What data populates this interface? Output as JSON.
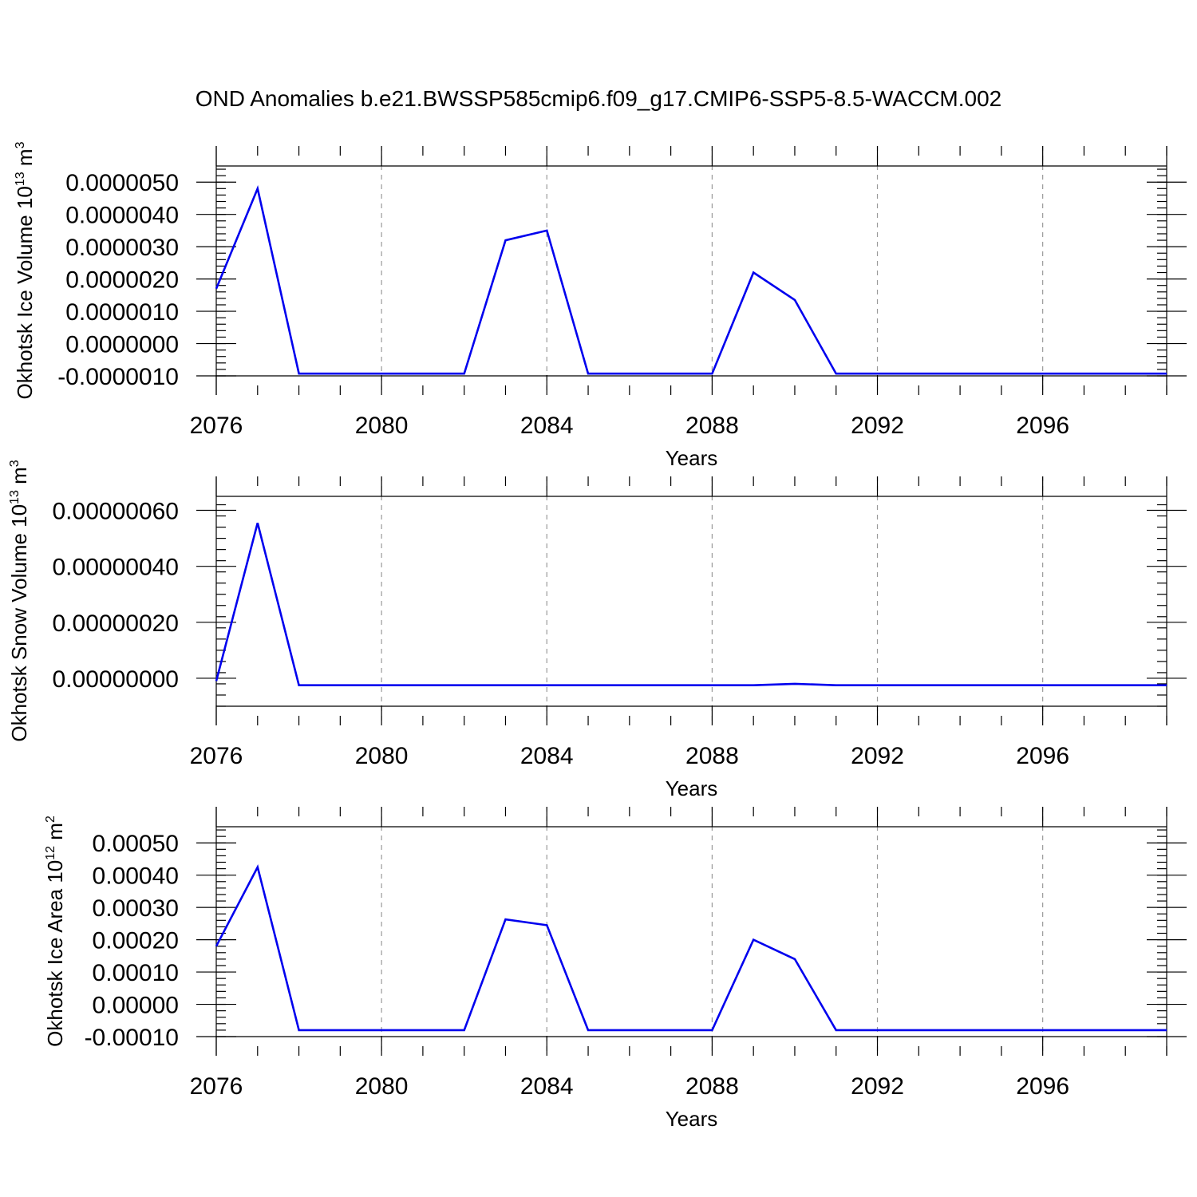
{
  "title": "OND Anomalies b.e21.BWSSP585cmip6.f09_g17.CMIP6-SSP5-8.5-WACCM.002",
  "colors": {
    "line": "#0000ee",
    "grid": "#9a9a9a",
    "axis": "#000000"
  },
  "chart_data": [
    {
      "type": "line",
      "ylabel_main": "Okhotsk Ice Volume 10",
      "ylabel_exp": "13",
      "ylabel_unit": " m",
      "ylabel_unit_exp": "3",
      "xlabel": "Years",
      "xlim": [
        2076,
        2099
      ],
      "ylim": [
        -1e-06,
        5.5e-06
      ],
      "x_ticks": [
        2076,
        2080,
        2084,
        2088,
        2092,
        2096
      ],
      "x_tick_labels": [
        "2076",
        "2080",
        "2084",
        "2088",
        "2092",
        "2096"
      ],
      "y_ticks": [
        -1e-06,
        0.0,
        1e-06,
        2e-06,
        3e-06,
        4e-06,
        5e-06
      ],
      "y_tick_labels": [
        "-0.0000010",
        "0.0000000",
        "0.0000010",
        "0.0000020",
        "0.0000030",
        "0.0000040",
        "0.0000050"
      ],
      "grid": "vertical dashed at major x ticks",
      "series": [
        {
          "x": [
            2076,
            2077,
            2078,
            2079,
            2080,
            2081,
            2082,
            2083,
            2084,
            2085,
            2086,
            2087,
            2088,
            2089,
            2090,
            2091,
            2092,
            2093,
            2094,
            2095,
            2096,
            2097,
            2098,
            2099
          ],
          "values": [
            1.7e-06,
            4.8e-06,
            -9.3e-07,
            -9.3e-07,
            -9.3e-07,
            -9.3e-07,
            -9.3e-07,
            3.2e-06,
            3.5e-06,
            -9.3e-07,
            -9.3e-07,
            -9.3e-07,
            -9.3e-07,
            2.2e-06,
            1.35e-06,
            -9.3e-07,
            -9.3e-07,
            -9.3e-07,
            -9.3e-07,
            -9.3e-07,
            -9.3e-07,
            -9.3e-07,
            -9.3e-07,
            -9.3e-07
          ]
        }
      ]
    },
    {
      "type": "line",
      "ylabel_main": "Okhotsk Snow Volume 10",
      "ylabel_exp": "13",
      "ylabel_unit": " m",
      "ylabel_unit_exp": "3",
      "xlabel": "Years",
      "xlim": [
        2076,
        2099
      ],
      "ylim": [
        -1e-07,
        6.5e-07
      ],
      "x_ticks": [
        2076,
        2080,
        2084,
        2088,
        2092,
        2096
      ],
      "x_tick_labels": [
        "2076",
        "2080",
        "2084",
        "2088",
        "2092",
        "2096"
      ],
      "y_ticks": [
        0.0,
        2e-07,
        4e-07,
        6e-07
      ],
      "y_tick_labels": [
        "0.00000000",
        "0.00000020",
        "0.00000040",
        "0.00000060"
      ],
      "grid": "vertical dashed at major x ticks",
      "series": [
        {
          "x": [
            2076,
            2077,
            2078,
            2079,
            2080,
            2081,
            2082,
            2083,
            2084,
            2085,
            2086,
            2087,
            2088,
            2089,
            2090,
            2091,
            2092,
            2093,
            2094,
            2095,
            2096,
            2097,
            2098,
            2099
          ],
          "values": [
            -1e-08,
            5.55e-07,
            -2.5e-08,
            -2.5e-08,
            -2.5e-08,
            -2.5e-08,
            -2.5e-08,
            -2.5e-08,
            -2.5e-08,
            -2.5e-08,
            -2.5e-08,
            -2.5e-08,
            -2.5e-08,
            -2.5e-08,
            -2e-08,
            -2.5e-08,
            -2.5e-08,
            -2.5e-08,
            -2.5e-08,
            -2.5e-08,
            -2.5e-08,
            -2.5e-08,
            -2.5e-08,
            -2.5e-08
          ]
        }
      ]
    },
    {
      "type": "line",
      "ylabel_main": "Okhotsk Ice Area 10",
      "ylabel_exp": "12",
      "ylabel_unit": " m",
      "ylabel_unit_exp": "2",
      "xlabel": "Years",
      "xlim": [
        2076,
        2099
      ],
      "ylim": [
        -0.0001,
        0.00055
      ],
      "x_ticks": [
        2076,
        2080,
        2084,
        2088,
        2092,
        2096
      ],
      "x_tick_labels": [
        "2076",
        "2080",
        "2084",
        "2088",
        "2092",
        "2096"
      ],
      "y_ticks": [
        -0.0001,
        0.0,
        0.0001,
        0.0002,
        0.0003,
        0.0004,
        0.0005
      ],
      "y_tick_labels": [
        "-0.00010",
        "0.00000",
        "0.00010",
        "0.00020",
        "0.00030",
        "0.00040",
        "0.00050"
      ],
      "grid": "vertical dashed at major x ticks",
      "series": [
        {
          "x": [
            2076,
            2077,
            2078,
            2079,
            2080,
            2081,
            2082,
            2083,
            2084,
            2085,
            2086,
            2087,
            2088,
            2089,
            2090,
            2091,
            2092,
            2093,
            2094,
            2095,
            2096,
            2097,
            2098,
            2099
          ],
          "values": [
            0.00018,
            0.000425,
            -8e-05,
            -8e-05,
            -8e-05,
            -8e-05,
            -8e-05,
            0.000263,
            0.000245,
            -8e-05,
            -8e-05,
            -8e-05,
            -8e-05,
            0.0002,
            0.00014,
            -8e-05,
            -8e-05,
            -8e-05,
            -8e-05,
            -8e-05,
            -8e-05,
            -8e-05,
            -8e-05,
            -8e-05
          ]
        }
      ]
    }
  ]
}
